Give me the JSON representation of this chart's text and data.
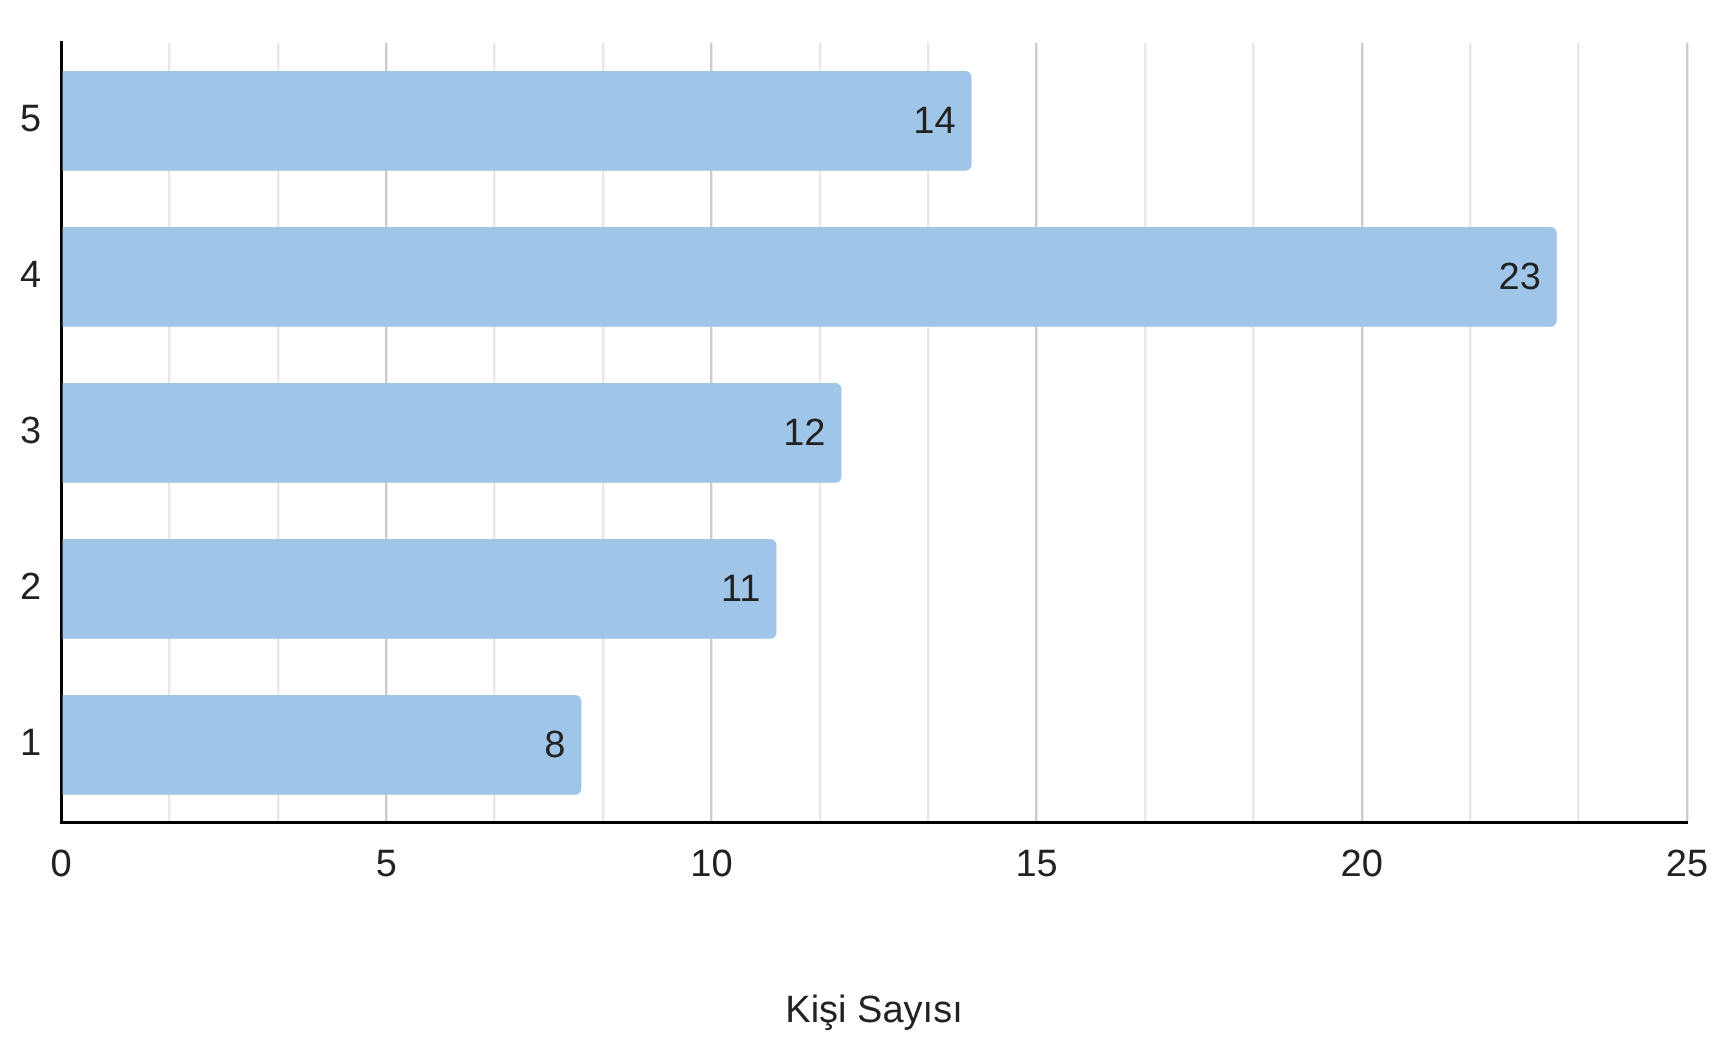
{
  "chart_data": {
    "type": "bar",
    "orientation": "horizontal",
    "xlabel": "Kişi Sayısı",
    "categories": [
      "5",
      "4",
      "3",
      "2",
      "1"
    ],
    "values": [
      14,
      23,
      12,
      11,
      8
    ],
    "color": "#9fc5e8",
    "xlim": [
      0,
      25
    ],
    "xticks": [
      0,
      {
        "value": 1.667,
        "label": null
      },
      {
        "value": 3.333,
        "label": null
      },
      5,
      {
        "value": 6.667,
        "label": null
      },
      {
        "value": 8.333,
        "label": null
      },
      10,
      {
        "value": 11.667,
        "label": null
      },
      {
        "value": 13.333,
        "label": null
      },
      15,
      {
        "value": 16.667,
        "label": null
      },
      {
        "value": 18.333,
        "label": null
      },
      20,
      {
        "value": 21.667,
        "label": null
      },
      {
        "value": 23.333,
        "label": null
      },
      25
    ],
    "grid": "x",
    "data_labels": true,
    "legend": false
  }
}
